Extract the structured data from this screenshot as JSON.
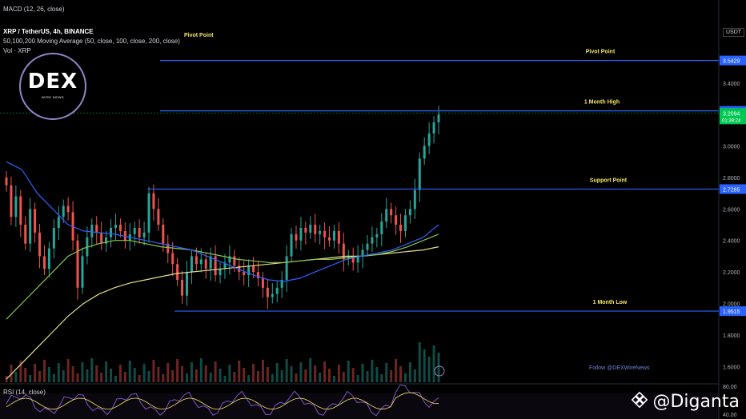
{
  "header": {
    "macd_label": "MACD (12, 26, close)",
    "title": "XRP / TetherUS, 4h, BINANCE",
    "ma_label": "50,100,200 Moving Average (50, close, 100, close, 200, close)",
    "vol_label": "Vol · XRP",
    "rsi_label": "RSI (14, close)",
    "pivot_top_left": "Pivot Point"
  },
  "logo": {
    "name": "DEX",
    "subtitle": "WIRE NEWS"
  },
  "follow_text": "Follow @DEXWireNews",
  "watermark": "@Diganta",
  "currency": "USDT",
  "colors": {
    "background": "#000000",
    "up": "#26a69a",
    "down": "#ef5350",
    "level_line": "#2962ff",
    "ma50": "#2962ff",
    "ma100": "#8bc34a",
    "ma200": "#e8dd8c",
    "level_label": "#f5e663",
    "price_tag": "#2962ff",
    "current_tag": "#00c853"
  },
  "chart_data": {
    "type": "candlestick",
    "symbol": "XRP / TetherUS",
    "interval": "4h",
    "exchange": "BINANCE",
    "ylim": [
      1.5,
      3.8
    ],
    "y_ticks": [
      "3.4000",
      "3.2000",
      "3.0000",
      "2.8000",
      "2.6000",
      "2.4000",
      "2.2000",
      "2.0000",
      "1.8000",
      "1.6000"
    ],
    "levels": [
      {
        "label": "Pivot Point",
        "value": 3.5429,
        "tag": "3.5429"
      },
      {
        "label": "1 Month High",
        "value": 3.2231,
        "tag": "3.2231"
      },
      {
        "label": "Support Point",
        "value": 2.7265,
        "tag": "2.7265"
      },
      {
        "label": "1 Month Low",
        "value": 1.9515,
        "tag": "1.9515"
      }
    ],
    "current_price": {
      "value": 3.2094,
      "tag": "3.2094",
      "countdown": "01:39:24"
    },
    "close_series": [
      2.75,
      2.55,
      2.68,
      2.5,
      2.38,
      2.6,
      2.45,
      2.3,
      2.22,
      2.35,
      2.48,
      2.55,
      2.62,
      2.58,
      2.4,
      2.1,
      2.3,
      2.42,
      2.5,
      2.45,
      2.38,
      2.42,
      2.48,
      2.5,
      2.46,
      2.4,
      2.44,
      2.48,
      2.42,
      2.45,
      2.7,
      2.6,
      2.5,
      2.38,
      2.32,
      2.25,
      2.15,
      2.05,
      2.2,
      2.3,
      2.25,
      2.28,
      2.22,
      2.3,
      2.18,
      2.22,
      2.26,
      2.3,
      2.24,
      2.2,
      2.18,
      2.24,
      2.2,
      2.16,
      2.1,
      2.04,
      2.06,
      2.1,
      2.15,
      2.3,
      2.44,
      2.4,
      2.48,
      2.45,
      2.5,
      2.44,
      2.46,
      2.42,
      2.4,
      2.46,
      2.38,
      2.28,
      2.3,
      2.26,
      2.3,
      2.34,
      2.38,
      2.42,
      2.44,
      2.52,
      2.6,
      2.56,
      2.5,
      2.46,
      2.56,
      2.6,
      2.72,
      2.92,
      3.0,
      3.08,
      3.15,
      3.2
    ],
    "ma50": [
      2.9,
      2.85,
      2.7,
      2.6,
      2.5,
      2.46,
      2.45,
      2.44,
      2.42,
      2.4,
      2.38,
      2.36,
      2.34,
      2.3,
      2.26,
      2.22,
      2.18,
      2.15,
      2.14,
      2.16,
      2.2,
      2.24,
      2.28,
      2.3,
      2.32,
      2.34,
      2.38,
      2.42,
      2.5
    ],
    "ma100": [
      1.9,
      2.0,
      2.1,
      2.2,
      2.3,
      2.35,
      2.38,
      2.4,
      2.4,
      2.38,
      2.36,
      2.35,
      2.34,
      2.32,
      2.3,
      2.28,
      2.27,
      2.26,
      2.26,
      2.27,
      2.28,
      2.28,
      2.29,
      2.3,
      2.31,
      2.33,
      2.36,
      2.4,
      2.44
    ],
    "ma200": [
      1.52,
      1.62,
      1.72,
      1.82,
      1.92,
      2.0,
      2.06,
      2.1,
      2.13,
      2.15,
      2.17,
      2.19,
      2.2,
      2.21,
      2.22,
      2.23,
      2.24,
      2.25,
      2.26,
      2.27,
      2.28,
      2.29,
      2.3,
      2.3,
      2.31,
      2.32,
      2.33,
      2.34,
      2.36
    ],
    "rsi_ylim": [
      40,
      80
    ],
    "rsi_ticks": [
      "80.00",
      "40.00"
    ]
  }
}
